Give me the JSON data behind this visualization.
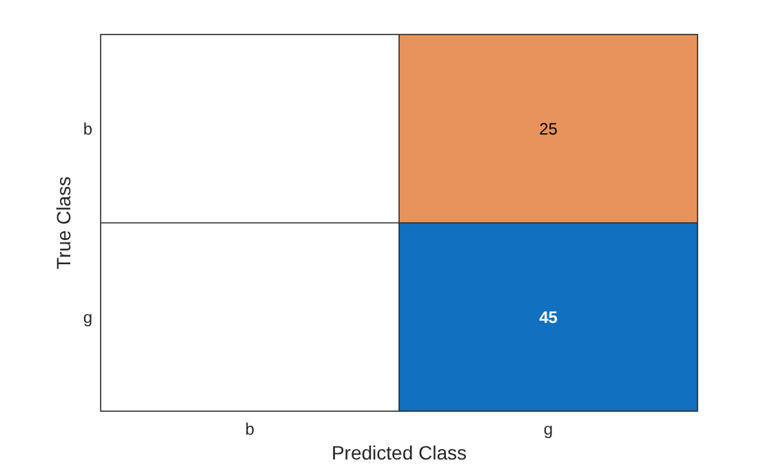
{
  "chart_data": {
    "type": "heatmap",
    "xlabel": "Predicted Class",
    "ylabel": "True Class",
    "categories": [
      "b",
      "g"
    ],
    "y_categories": [
      "b",
      "g"
    ],
    "cells": [
      [
        null,
        25
      ],
      [
        null,
        45
      ]
    ],
    "colors": [
      [
        null,
        "#e8935c"
      ],
      [
        null,
        "#1170bf"
      ]
    ],
    "data_labels": true
  }
}
